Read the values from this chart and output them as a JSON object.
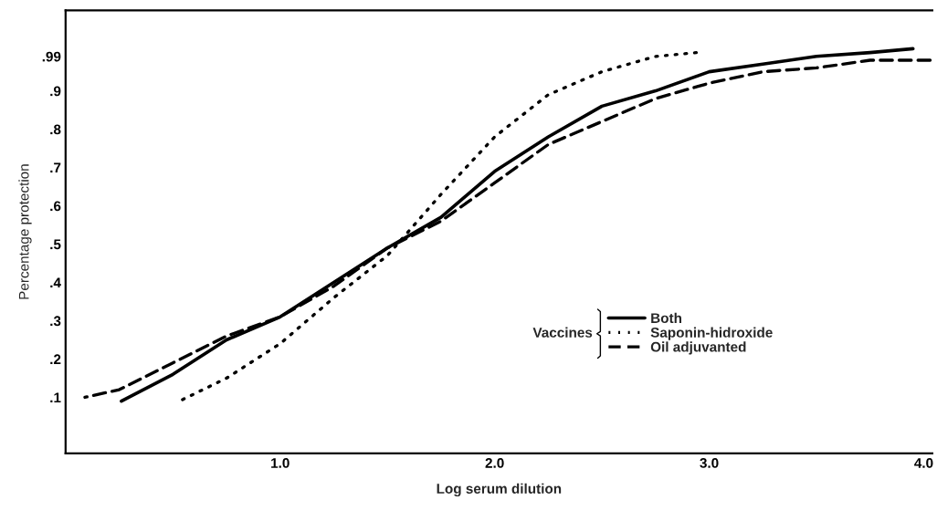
{
  "chart_data": {
    "type": "line",
    "xlabel": "Log serum dilution",
    "ylabel": "Percentage protection",
    "legend_title": "Vaccines",
    "legend": "lower right",
    "xlim": [
      0.0,
      4.04
    ],
    "ylim": [
      -0.046,
      1.11
    ],
    "xticks": [
      {
        "value": 1,
        "label": "1.0"
      },
      {
        "value": 2,
        "label": "2.0"
      },
      {
        "value": 3,
        "label": "3.0"
      },
      {
        "value": 4,
        "label": "4.0"
      }
    ],
    "yticks": [
      {
        "value": 0.1,
        "label": ".1"
      },
      {
        "value": 0.2,
        "label": ".2"
      },
      {
        "value": 0.3,
        "label": ".3"
      },
      {
        "value": 0.4,
        "label": ".4"
      },
      {
        "value": 0.5,
        "label": ".5"
      },
      {
        "value": 0.6,
        "label": ".6"
      },
      {
        "value": 0.7,
        "label": ".7"
      },
      {
        "value": 0.8,
        "label": ".8"
      },
      {
        "value": 0.9,
        "label": ".9"
      },
      {
        "value": 0.99,
        "label": ".99"
      }
    ],
    "grid": false,
    "marker": "none",
    "series": [
      {
        "name": "Both",
        "color": "#000000",
        "line_style": "solid",
        "x": [
          0.26,
          0.5,
          0.75,
          1.0,
          1.25,
          1.5,
          1.75,
          2.0,
          2.25,
          2.5,
          2.75,
          3.0,
          3.25,
          3.5,
          3.75,
          3.95
        ],
        "values": [
          0.09,
          0.16,
          0.25,
          0.31,
          0.4,
          0.49,
          0.57,
          0.69,
          0.78,
          0.86,
          0.9,
          0.95,
          0.97,
          0.99,
          1.0,
          1.01
        ]
      },
      {
        "name": "Saponin-hidroxide",
        "color": "#000000",
        "line_style": "dotted",
        "x": [
          0.53,
          0.75,
          1.0,
          1.25,
          1.5,
          1.75,
          2.0,
          2.25,
          2.5,
          2.75,
          2.94
        ],
        "values": [
          0.09,
          0.15,
          0.24,
          0.36,
          0.47,
          0.63,
          0.78,
          0.89,
          0.95,
          0.99,
          1.0
        ]
      },
      {
        "name": "Oil adjuvanted",
        "color": "#000000",
        "line_style": "dashed",
        "x": [
          0.09,
          0.25,
          0.5,
          0.75,
          1.0,
          1.25,
          1.5,
          1.75,
          2.0,
          2.25,
          2.5,
          2.75,
          3.0,
          3.25,
          3.5,
          3.75,
          4.03
        ],
        "values": [
          0.1,
          0.12,
          0.19,
          0.26,
          0.31,
          0.39,
          0.49,
          0.56,
          0.66,
          0.76,
          0.82,
          0.88,
          0.92,
          0.95,
          0.96,
          0.98,
          0.98
        ]
      }
    ]
  }
}
